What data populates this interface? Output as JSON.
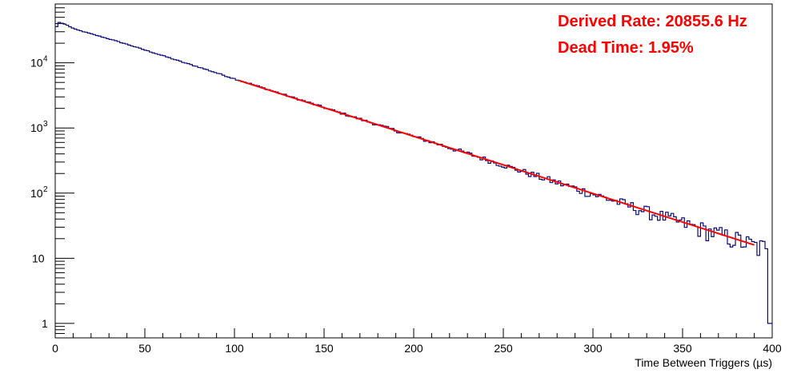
{
  "chart_data": {
    "type": "line",
    "title": "",
    "xlabel": "Time Between Triggers (µs)",
    "ylabel": "",
    "xlim": [
      0,
      400
    ],
    "ylim": [
      0.6,
      80000
    ],
    "yscale": "log",
    "x_ticks": [
      0,
      50,
      100,
      150,
      200,
      250,
      300,
      350,
      400
    ],
    "x_tick_labels": [
      "0",
      "50",
      "100",
      "150",
      "200",
      "250",
      "300",
      "350",
      "400"
    ],
    "y_ticks": [
      1,
      10,
      100,
      1000,
      10000
    ],
    "y_tick_labels": [
      {
        "base": "1",
        "exp": ""
      },
      {
        "base": "10",
        "exp": ""
      },
      {
        "base": "10",
        "exp": "2"
      },
      {
        "base": "10",
        "exp": "3"
      },
      {
        "base": "10",
        "exp": "4"
      }
    ],
    "grid": false,
    "series": [
      {
        "kind": "histogram",
        "color": "#0a0a7a",
        "x": [
          0,
          1,
          5,
          10,
          20,
          30,
          40,
          50,
          60,
          70,
          80,
          90,
          100,
          110,
          120,
          130,
          140,
          150,
          160,
          170,
          180,
          190,
          200,
          210,
          220,
          230,
          240,
          250,
          260,
          270,
          280,
          290,
          300,
          310,
          320,
          330,
          340,
          350,
          360,
          370,
          380,
          390,
          396,
          399
        ],
        "y": [
          36000,
          42000,
          39000,
          33000,
          27500,
          23000,
          19000,
          15500,
          12700,
          10300,
          8500,
          6900,
          5600,
          4600,
          3750,
          3050,
          2500,
          2030,
          1650,
          1350,
          1100,
          900,
          730,
          600,
          490,
          400,
          325,
          265,
          215,
          175,
          143,
          117,
          95,
          78,
          63,
          51,
          42,
          34,
          28,
          23,
          19,
          15,
          14,
          1
        ]
      },
      {
        "kind": "fit",
        "color": "#ff0000",
        "x": [
          102,
          390
        ],
        "y": [
          5400,
          16
        ]
      }
    ],
    "annotations": [
      {
        "text": "Derived Rate: 20855.6 Hz",
        "color": "#ff0000"
      },
      {
        "text": "Dead Time: 1.95%",
        "color": "#ff0000"
      }
    ]
  }
}
